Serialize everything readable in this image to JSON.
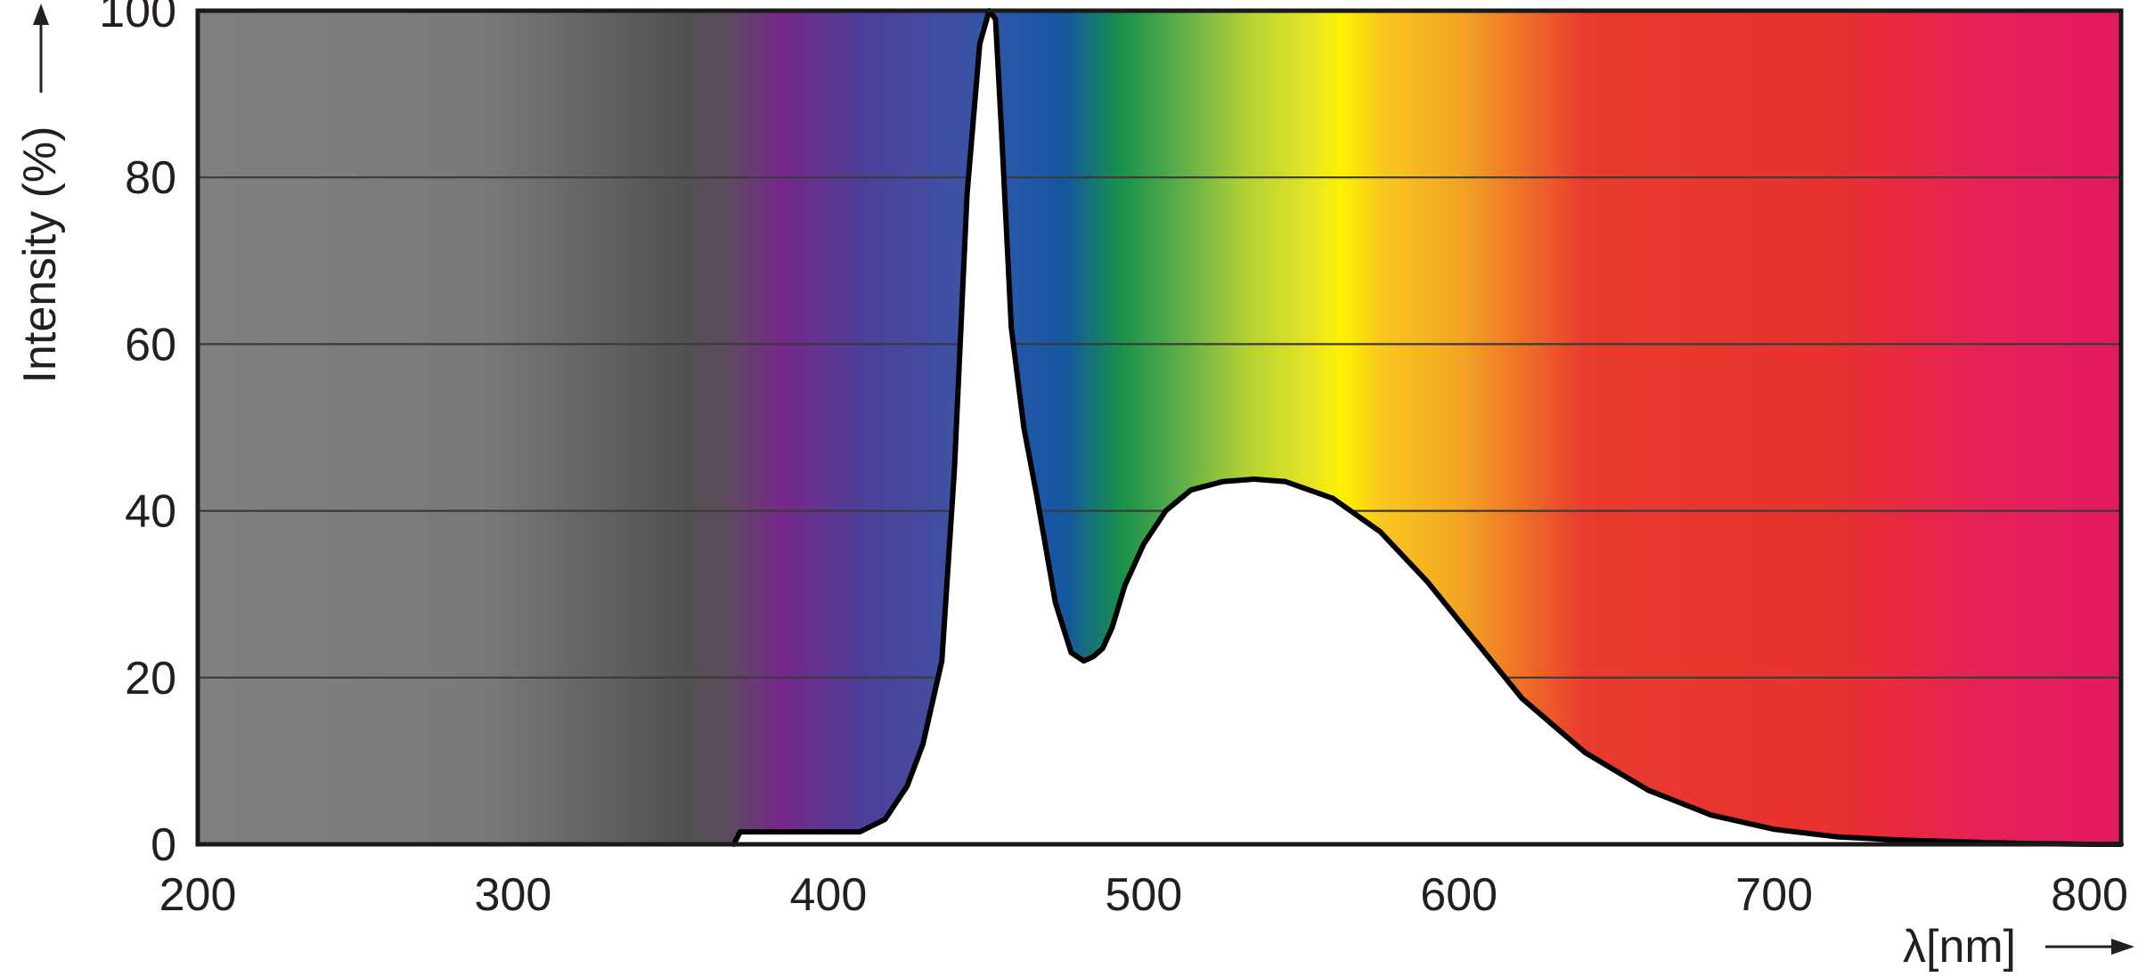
{
  "chart_data": {
    "type": "area",
    "title": "",
    "xlabel": "λ[nm]",
    "ylabel": "Intensity (%)",
    "xlim": [
      200,
      810
    ],
    "ylim": [
      0,
      100
    ],
    "x_ticks": [
      200,
      300,
      400,
      500,
      600,
      700,
      800
    ],
    "x_tick_labels": [
      "200",
      "300",
      "400",
      "500",
      "600",
      "700",
      "800"
    ],
    "y_ticks": [
      0,
      20,
      40,
      60,
      80,
      100
    ],
    "y_tick_labels": [
      "0",
      "20",
      "40",
      "60",
      "80",
      "100"
    ],
    "grid": "horizontal",
    "legend": "none",
    "background": "visible light spectrum gradient (grey UV region to violet, blue, green, yellow, orange, red)",
    "spectrum_colors": [
      {
        "nm": 200,
        "color": "#808080"
      },
      {
        "nm": 290,
        "color": "#7a7a7a"
      },
      {
        "nm": 355,
        "color": "#505150"
      },
      {
        "nm": 368,
        "color": "#5f4a5f"
      },
      {
        "nm": 385,
        "color": "#76288a"
      },
      {
        "nm": 410,
        "color": "#4e3e98"
      },
      {
        "nm": 440,
        "color": "#3f51a3"
      },
      {
        "nm": 460,
        "color": "#2458a8"
      },
      {
        "nm": 475,
        "color": "#1456a0"
      },
      {
        "nm": 493,
        "color": "#18924a"
      },
      {
        "nm": 512,
        "color": "#5fae4a"
      },
      {
        "nm": 533,
        "color": "#b4d233"
      },
      {
        "nm": 553,
        "color": "#e6e524"
      },
      {
        "nm": 563,
        "color": "#fff100"
      },
      {
        "nm": 575,
        "color": "#f9c81f"
      },
      {
        "nm": 600,
        "color": "#f3a623"
      },
      {
        "nm": 640,
        "color": "#e93b2e"
      },
      {
        "nm": 720,
        "color": "#e8312f"
      },
      {
        "nm": 770,
        "color": "#e6205a"
      },
      {
        "nm": 810,
        "color": "#e31a60"
      }
    ],
    "series": [
      {
        "fill": "#ffffff",
        "stroke": "#000000",
        "x": [
          370,
          372,
          410,
          418,
          425,
          430,
          436,
          440,
          444,
          448,
          451,
          453,
          455,
          458,
          462,
          466,
          472,
          477,
          481,
          484,
          487,
          490,
          494,
          500,
          507,
          515,
          525,
          535,
          545,
          560,
          575,
          590,
          605,
          620,
          640,
          660,
          680,
          700,
          720,
          740,
          760,
          768,
          780,
          800,
          810
        ],
        "y": [
          0,
          1.5,
          1.5,
          3,
          7,
          12,
          22,
          45,
          78,
          96,
          100,
          99,
          85,
          62,
          50,
          42,
          29,
          23,
          22,
          22.5,
          23.5,
          26,
          31,
          36,
          40,
          42.5,
          43.5,
          43.8,
          43.5,
          41.5,
          37.5,
          31.5,
          24.5,
          17.5,
          11,
          6.5,
          3.5,
          1.8,
          0.9,
          0.5,
          0.3,
          0.2,
          0.1,
          0,
          0
        ]
      }
    ]
  }
}
